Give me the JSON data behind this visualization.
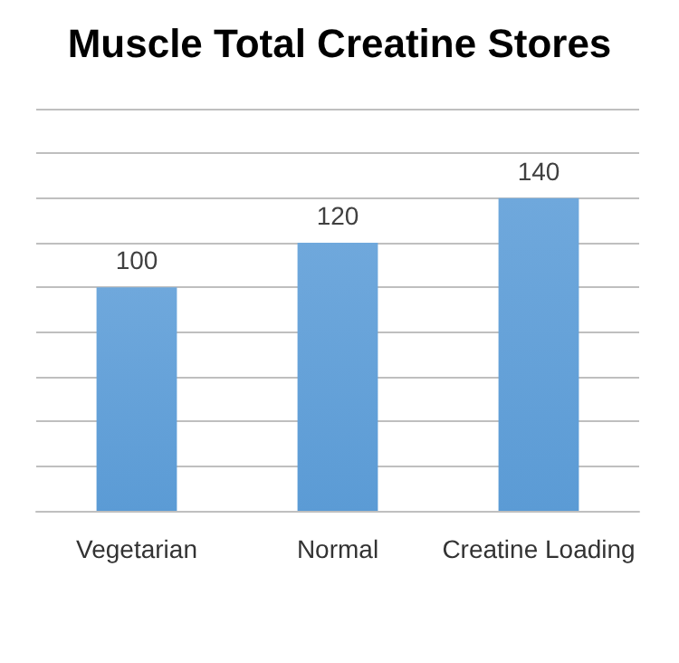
{
  "chart_data": {
    "type": "bar",
    "title": "Muscle Total Creatine Stores",
    "categories": [
      "Vegetarian",
      "Normal",
      "Creatine Loading"
    ],
    "values": [
      100,
      120,
      140
    ],
    "color": "#5b9bd5",
    "data_labels": true,
    "ylim": [
      0,
      180
    ],
    "yticks": [
      {
        "value": 0,
        "label": null
      },
      {
        "value": 20,
        "label": null
      },
      {
        "value": 40,
        "label": null
      },
      {
        "value": 60,
        "label": null
      },
      {
        "value": 80,
        "label": null
      },
      {
        "value": 100,
        "label": null
      },
      {
        "value": 120,
        "label": null
      },
      {
        "value": 140,
        "label": null
      },
      {
        "value": 160,
        "label": null
      },
      {
        "value": 180,
        "label": null
      }
    ],
    "grid": "y",
    "tick_labels": "x"
  }
}
